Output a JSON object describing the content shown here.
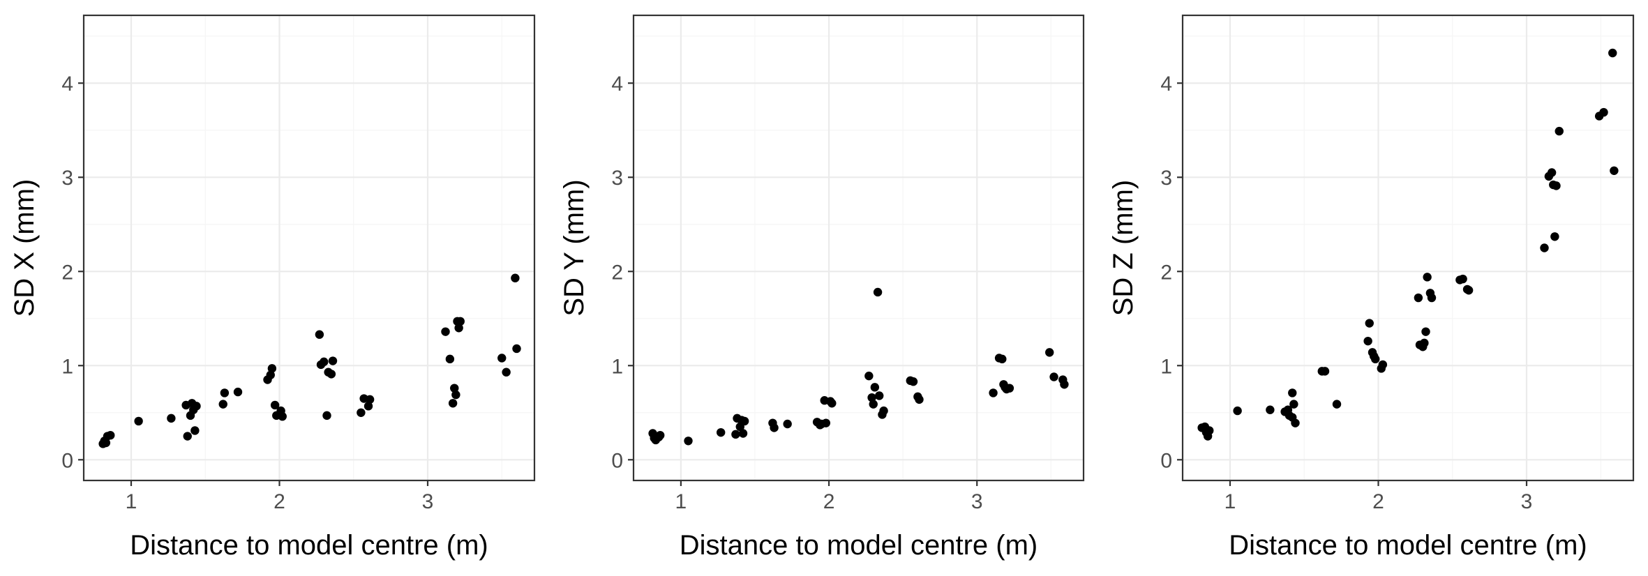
{
  "chart_data": [
    {
      "type": "scatter",
      "title": "",
      "xlabel": "Distance to model centre (m)",
      "ylabel": "SD X (mm)",
      "xlim": [
        0.68,
        3.72
      ],
      "ylim": [
        -0.22,
        4.72
      ],
      "x_ticks": [
        1,
        2,
        3
      ],
      "y_ticks": [
        0,
        1,
        2,
        3,
        4
      ],
      "grid": true,
      "point_color": "#000000",
      "points": [
        [
          0.81,
          0.17
        ],
        [
          0.82,
          0.2
        ],
        [
          0.84,
          0.25
        ],
        [
          0.86,
          0.26
        ],
        [
          0.83,
          0.18
        ],
        [
          1.05,
          0.41
        ],
        [
          1.27,
          0.44
        ],
        [
          1.37,
          0.58
        ],
        [
          1.38,
          0.25
        ],
        [
          1.4,
          0.47
        ],
        [
          1.41,
          0.6
        ],
        [
          1.43,
          0.31
        ],
        [
          1.44,
          0.57
        ],
        [
          1.42,
          0.53
        ],
        [
          1.62,
          0.59
        ],
        [
          1.63,
          0.71
        ],
        [
          1.72,
          0.72
        ],
        [
          1.92,
          0.85
        ],
        [
          1.94,
          0.9
        ],
        [
          1.95,
          0.97
        ],
        [
          1.97,
          0.58
        ],
        [
          1.98,
          0.47
        ],
        [
          2.01,
          0.52
        ],
        [
          2.02,
          0.46
        ],
        [
          2.27,
          1.33
        ],
        [
          2.28,
          1.01
        ],
        [
          2.3,
          1.04
        ],
        [
          2.32,
          0.47
        ],
        [
          2.33,
          0.93
        ],
        [
          2.35,
          0.91
        ],
        [
          2.36,
          1.05
        ],
        [
          2.55,
          0.5
        ],
        [
          2.57,
          0.65
        ],
        [
          2.6,
          0.57
        ],
        [
          2.61,
          0.64
        ],
        [
          3.12,
          1.36
        ],
        [
          3.15,
          1.07
        ],
        [
          3.17,
          0.6
        ],
        [
          3.18,
          0.76
        ],
        [
          3.19,
          0.69
        ],
        [
          3.2,
          1.47
        ],
        [
          3.21,
          1.4
        ],
        [
          3.22,
          1.47
        ],
        [
          3.5,
          1.08
        ],
        [
          3.53,
          0.93
        ],
        [
          3.59,
          1.93
        ],
        [
          3.6,
          1.18
        ]
      ]
    },
    {
      "type": "scatter",
      "title": "",
      "xlabel": "Distance to model centre (m)",
      "ylabel": "SD Y (mm)",
      "xlim": [
        0.68,
        3.72
      ],
      "ylim": [
        -0.22,
        4.72
      ],
      "x_ticks": [
        1,
        2,
        3
      ],
      "y_ticks": [
        0,
        1,
        2,
        3,
        4
      ],
      "grid": true,
      "point_color": "#000000",
      "points": [
        [
          0.81,
          0.28
        ],
        [
          0.82,
          0.23
        ],
        [
          0.83,
          0.21
        ],
        [
          0.85,
          0.24
        ],
        [
          0.86,
          0.26
        ],
        [
          1.05,
          0.2
        ],
        [
          1.27,
          0.29
        ],
        [
          1.37,
          0.27
        ],
        [
          1.38,
          0.44
        ],
        [
          1.4,
          0.35
        ],
        [
          1.42,
          0.28
        ],
        [
          1.43,
          0.41
        ],
        [
          1.41,
          0.42
        ],
        [
          1.62,
          0.39
        ],
        [
          1.63,
          0.34
        ],
        [
          1.72,
          0.38
        ],
        [
          1.92,
          0.4
        ],
        [
          1.94,
          0.37
        ],
        [
          1.95,
          0.38
        ],
        [
          1.97,
          0.63
        ],
        [
          1.98,
          0.39
        ],
        [
          2.02,
          0.6
        ],
        [
          2.01,
          0.62
        ],
        [
          2.27,
          0.89
        ],
        [
          2.29,
          0.66
        ],
        [
          2.3,
          0.59
        ],
        [
          2.31,
          0.77
        ],
        [
          2.33,
          1.78
        ],
        [
          2.34,
          0.68
        ],
        [
          2.36,
          0.48
        ],
        [
          2.37,
          0.52
        ],
        [
          2.55,
          0.84
        ],
        [
          2.57,
          0.83
        ],
        [
          2.6,
          0.67
        ],
        [
          2.61,
          0.64
        ],
        [
          3.11,
          0.71
        ],
        [
          3.15,
          1.08
        ],
        [
          3.17,
          1.07
        ],
        [
          3.18,
          0.8
        ],
        [
          3.19,
          0.77
        ],
        [
          3.2,
          0.75
        ],
        [
          3.22,
          0.76
        ],
        [
          3.49,
          1.14
        ],
        [
          3.52,
          0.88
        ],
        [
          3.58,
          0.85
        ],
        [
          3.59,
          0.8
        ]
      ]
    },
    {
      "type": "scatter",
      "title": "",
      "xlabel": "Distance to model centre (m)",
      "ylabel": "SD Z (mm)",
      "xlim": [
        0.68,
        3.72
      ],
      "ylim": [
        -0.22,
        4.72
      ],
      "x_ticks": [
        1,
        2,
        3
      ],
      "y_ticks": [
        0,
        1,
        2,
        3,
        4
      ],
      "grid": true,
      "point_color": "#000000",
      "points": [
        [
          0.81,
          0.34
        ],
        [
          0.83,
          0.35
        ],
        [
          0.84,
          0.29
        ],
        [
          0.85,
          0.25
        ],
        [
          0.86,
          0.31
        ],
        [
          1.05,
          0.52
        ],
        [
          1.27,
          0.53
        ],
        [
          1.37,
          0.51
        ],
        [
          1.39,
          0.53
        ],
        [
          1.4,
          0.47
        ],
        [
          1.42,
          0.71
        ],
        [
          1.43,
          0.59
        ],
        [
          1.44,
          0.39
        ],
        [
          1.42,
          0.45
        ],
        [
          1.62,
          0.94
        ],
        [
          1.64,
          0.94
        ],
        [
          1.72,
          0.59
        ],
        [
          1.93,
          1.26
        ],
        [
          1.94,
          1.45
        ],
        [
          1.96,
          1.14
        ],
        [
          1.97,
          1.1
        ],
        [
          1.98,
          1.07
        ],
        [
          2.02,
          0.97
        ],
        [
          2.03,
          1.01
        ],
        [
          2.27,
          1.72
        ],
        [
          2.28,
          1.22
        ],
        [
          2.3,
          1.2
        ],
        [
          2.31,
          1.24
        ],
        [
          2.32,
          1.36
        ],
        [
          2.33,
          1.94
        ],
        [
          2.35,
          1.77
        ],
        [
          2.36,
          1.72
        ],
        [
          2.55,
          1.91
        ],
        [
          2.57,
          1.92
        ],
        [
          2.6,
          1.81
        ],
        [
          2.61,
          1.8
        ],
        [
          3.12,
          2.25
        ],
        [
          3.15,
          3.01
        ],
        [
          3.17,
          3.05
        ],
        [
          3.18,
          2.92
        ],
        [
          3.19,
          2.37
        ],
        [
          3.2,
          2.91
        ],
        [
          3.22,
          3.49
        ],
        [
          3.49,
          3.65
        ],
        [
          3.52,
          3.69
        ],
        [
          3.58,
          4.32
        ],
        [
          3.59,
          3.07
        ]
      ]
    }
  ]
}
